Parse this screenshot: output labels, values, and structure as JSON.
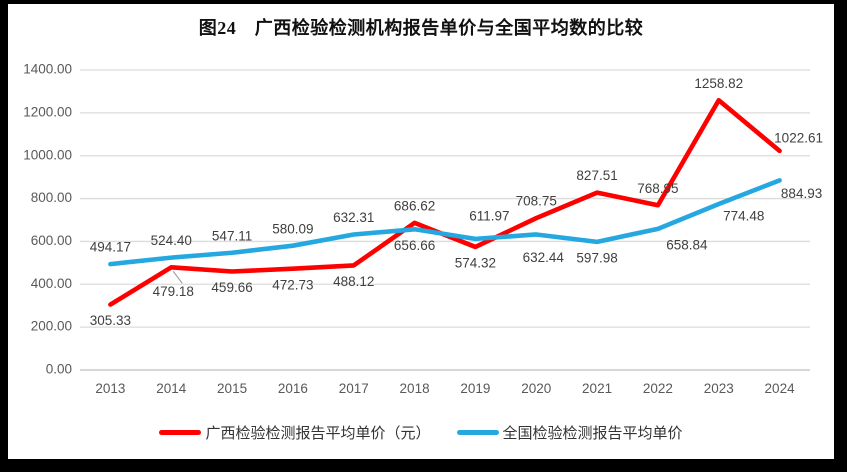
{
  "title": "图24　广西检验检测机构报告单价与全国平均数的比较",
  "frame": {
    "border_color": "#000000",
    "background_color": "#FFFFFF"
  },
  "colors": {
    "series_guangxi": "#FF0000",
    "series_national": "#25A8E0",
    "data_label_text": "#404040",
    "axis_text": "#595959",
    "gridline": "#DCDCDC",
    "axis_line": "#BFBFBF",
    "leader_line": "#9E9E9E",
    "title_text": "#111111"
  },
  "chart_data": {
    "type": "line",
    "title": "图24　广西检验检测机构报告单价与全国平均数的比较",
    "categories": [
      "2013",
      "2014",
      "2015",
      "2016",
      "2017",
      "2018",
      "2019",
      "2020",
      "2021",
      "2022",
      "2023",
      "2024"
    ],
    "series": [
      {
        "name": "广西检验检测报告平均单价（元）",
        "color": "#FF0000",
        "values": [
          305.33,
          479.18,
          459.66,
          472.73,
          488.12,
          686.62,
          574.32,
          708.75,
          827.51,
          768.95,
          1258.82,
          1022.61
        ]
      },
      {
        "name": "全国检验检测报告平均单价",
        "color": "#25A8E0",
        "values": [
          494.17,
          524.4,
          547.11,
          580.09,
          632.31,
          656.66,
          611.97,
          632.44,
          597.98,
          658.84,
          774.48,
          884.93
        ]
      }
    ],
    "xlabel": "",
    "ylabel": "",
    "ylim": [
      0,
      1400
    ],
    "ytick_step": 200,
    "ytick_labels": [
      "0.00",
      "200.00",
      "400.00",
      "600.00",
      "800.00",
      "1000.00",
      "1200.00",
      "1400.00"
    ],
    "grid": "horizontal",
    "data_labels": true,
    "legend_position": "bottom"
  }
}
